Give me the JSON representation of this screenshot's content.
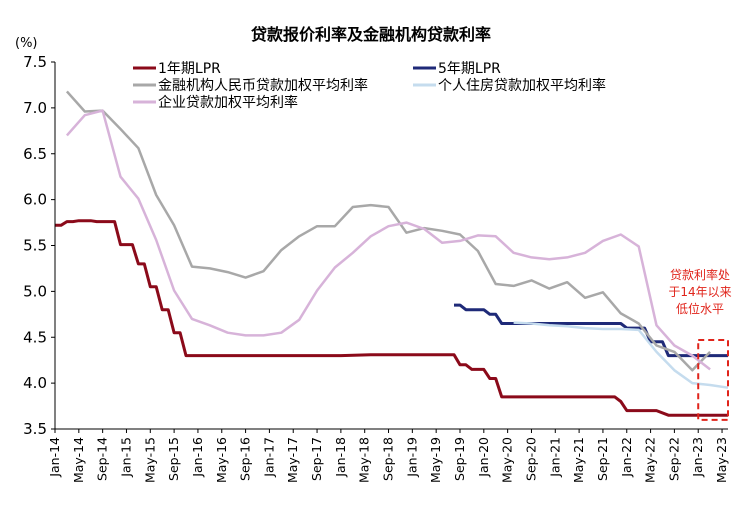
{
  "chart_data": {
    "type": "line",
    "title": "贷款报价利率及金融机构贷款利率",
    "unit_label": "(%)",
    "ylim": [
      3.5,
      7.5
    ],
    "yticks": [
      "3.5",
      "4.0",
      "4.5",
      "5.0",
      "5.5",
      "6.0",
      "6.5",
      "7.0",
      "7.5"
    ],
    "xlim": [
      "2014-01",
      "2023-06"
    ],
    "xticks": [
      "Jan-14",
      "May-14",
      "Sep-14",
      "Jan-15",
      "May-15",
      "Sep-15",
      "Jan-16",
      "May-16",
      "Sep-16",
      "Jan-17",
      "May-17",
      "Sep-17",
      "Jan-18",
      "May-18",
      "Sep-18",
      "Jan-19",
      "May-19",
      "Sep-19",
      "Jan-20",
      "May-20",
      "Sep-20",
      "Jan-21",
      "May-21",
      "Sep-21",
      "Jan-22",
      "May-22",
      "Sep-22",
      "Jan-23",
      "May-23"
    ],
    "grid": false,
    "legend_position": "top",
    "annotation": {
      "lines": [
        "贷款利率处",
        "于14年以来",
        "低位水平"
      ],
      "color": "#e0241b",
      "box_x_range": [
        "2023-01",
        "2023-06"
      ],
      "box_y_range": [
        3.6,
        4.47
      ]
    },
    "series": [
      {
        "name": "1年期LPR",
        "color": "#8b0a1a",
        "width": 3,
        "points": [
          [
            "2014-01",
            5.72
          ],
          [
            "2014-02",
            5.72
          ],
          [
            "2014-03",
            5.76
          ],
          [
            "2014-04",
            5.76
          ],
          [
            "2014-05",
            5.77
          ],
          [
            "2014-06",
            5.77
          ],
          [
            "2014-07",
            5.77
          ],
          [
            "2014-08",
            5.76
          ],
          [
            "2014-09",
            5.76
          ],
          [
            "2014-10",
            5.76
          ],
          [
            "2014-11",
            5.76
          ],
          [
            "2014-12",
            5.51
          ],
          [
            "2015-01",
            5.51
          ],
          [
            "2015-02",
            5.51
          ],
          [
            "2015-03",
            5.3
          ],
          [
            "2015-04",
            5.3
          ],
          [
            "2015-05",
            5.05
          ],
          [
            "2015-06",
            5.05
          ],
          [
            "2015-07",
            4.8
          ],
          [
            "2015-08",
            4.8
          ],
          [
            "2015-09",
            4.55
          ],
          [
            "2015-10",
            4.55
          ],
          [
            "2015-11",
            4.3
          ],
          [
            "2016-01",
            4.3
          ],
          [
            "2017-01",
            4.3
          ],
          [
            "2018-01",
            4.3
          ],
          [
            "2018-06",
            4.31
          ],
          [
            "2019-01",
            4.31
          ],
          [
            "2019-08",
            4.31
          ],
          [
            "2019-09",
            4.2
          ],
          [
            "2019-10",
            4.2
          ],
          [
            "2019-11",
            4.15
          ],
          [
            "2020-01",
            4.15
          ],
          [
            "2020-02",
            4.05
          ],
          [
            "2020-03",
            4.05
          ],
          [
            "2020-04",
            3.85
          ],
          [
            "2020-06",
            3.85
          ],
          [
            "2021-01",
            3.85
          ],
          [
            "2021-06",
            3.85
          ],
          [
            "2021-11",
            3.85
          ],
          [
            "2021-12",
            3.8
          ],
          [
            "2022-01",
            3.7
          ],
          [
            "2022-06",
            3.7
          ],
          [
            "2022-08",
            3.65
          ],
          [
            "2023-01",
            3.65
          ],
          [
            "2023-06",
            3.65
          ]
        ]
      },
      {
        "name": "5年期LPR",
        "color": "#1f2a78",
        "width": 3,
        "points": [
          [
            "2019-08",
            4.85
          ],
          [
            "2019-09",
            4.85
          ],
          [
            "2019-10",
            4.8
          ],
          [
            "2019-11",
            4.8
          ],
          [
            "2019-12",
            4.8
          ],
          [
            "2020-01",
            4.8
          ],
          [
            "2020-02",
            4.75
          ],
          [
            "2020-03",
            4.75
          ],
          [
            "2020-04",
            4.65
          ],
          [
            "2020-06",
            4.65
          ],
          [
            "2021-01",
            4.65
          ],
          [
            "2021-06",
            4.65
          ],
          [
            "2021-12",
            4.65
          ],
          [
            "2022-01",
            4.6
          ],
          [
            "2022-04",
            4.6
          ],
          [
            "2022-05",
            4.45
          ],
          [
            "2022-07",
            4.45
          ],
          [
            "2022-08",
            4.3
          ],
          [
            "2023-01",
            4.3
          ],
          [
            "2023-06",
            4.3
          ]
        ]
      },
      {
        "name": "金融机构人民币贷款加权平均利率",
        "color": "#a8a8a8",
        "width": 2.5,
        "points": [
          [
            "2014-03",
            7.18
          ],
          [
            "2014-06",
            6.96
          ],
          [
            "2014-09",
            6.97
          ],
          [
            "2014-12",
            6.77
          ],
          [
            "2015-03",
            6.56
          ],
          [
            "2015-06",
            6.05
          ],
          [
            "2015-09",
            5.72
          ],
          [
            "2015-12",
            5.27
          ],
          [
            "2016-03",
            5.25
          ],
          [
            "2016-06",
            5.21
          ],
          [
            "2016-09",
            5.15
          ],
          [
            "2016-12",
            5.22
          ],
          [
            "2017-03",
            5.45
          ],
          [
            "2017-06",
            5.6
          ],
          [
            "2017-09",
            5.71
          ],
          [
            "2017-12",
            5.71
          ],
          [
            "2018-03",
            5.92
          ],
          [
            "2018-06",
            5.94
          ],
          [
            "2018-09",
            5.92
          ],
          [
            "2018-12",
            5.64
          ],
          [
            "2019-03",
            5.69
          ],
          [
            "2019-06",
            5.66
          ],
          [
            "2019-09",
            5.62
          ],
          [
            "2019-12",
            5.44
          ],
          [
            "2020-03",
            5.08
          ],
          [
            "2020-06",
            5.06
          ],
          [
            "2020-09",
            5.12
          ],
          [
            "2020-12",
            5.03
          ],
          [
            "2021-03",
            5.1
          ],
          [
            "2021-06",
            4.93
          ],
          [
            "2021-09",
            4.99
          ],
          [
            "2021-12",
            4.76
          ],
          [
            "2022-03",
            4.65
          ],
          [
            "2022-06",
            4.41
          ],
          [
            "2022-09",
            4.34
          ],
          [
            "2022-12",
            4.14
          ],
          [
            "2023-03",
            4.34
          ]
        ]
      },
      {
        "name": "个人住房贷款加权平均利率",
        "color": "#c5dcee",
        "width": 2.5,
        "points": [
          [
            "2020-06",
            4.66
          ],
          [
            "2020-09",
            4.65
          ],
          [
            "2020-12",
            4.63
          ],
          [
            "2021-03",
            4.62
          ],
          [
            "2021-06",
            4.6
          ],
          [
            "2021-09",
            4.59
          ],
          [
            "2021-12",
            4.59
          ],
          [
            "2022-03",
            4.58
          ],
          [
            "2022-06",
            4.34
          ],
          [
            "2022-09",
            4.14
          ],
          [
            "2022-12",
            4.0
          ],
          [
            "2023-03",
            3.98
          ],
          [
            "2023-06",
            3.95
          ]
        ]
      },
      {
        "name": "企业贷款加权平均利率",
        "color": "#d7b3d9",
        "width": 2.5,
        "points": [
          [
            "2014-03",
            6.7
          ],
          [
            "2014-06",
            6.92
          ],
          [
            "2014-09",
            6.97
          ],
          [
            "2014-12",
            6.25
          ],
          [
            "2015-03",
            6.01
          ],
          [
            "2015-06",
            5.56
          ],
          [
            "2015-09",
            5.01
          ],
          [
            "2015-12",
            4.7
          ],
          [
            "2016-03",
            4.63
          ],
          [
            "2016-06",
            4.55
          ],
          [
            "2016-09",
            4.52
          ],
          [
            "2016-12",
            4.52
          ],
          [
            "2017-03",
            4.55
          ],
          [
            "2017-06",
            4.69
          ],
          [
            "2017-09",
            5.01
          ],
          [
            "2017-12",
            5.26
          ],
          [
            "2018-03",
            5.42
          ],
          [
            "2018-06",
            5.6
          ],
          [
            "2018-09",
            5.71
          ],
          [
            "2018-12",
            5.75
          ],
          [
            "2019-03",
            5.68
          ],
          [
            "2019-06",
            5.53
          ],
          [
            "2019-09",
            5.55
          ],
          [
            "2019-12",
            5.61
          ],
          [
            "2020-03",
            5.6
          ],
          [
            "2020-06",
            5.42
          ],
          [
            "2020-09",
            5.37
          ],
          [
            "2020-12",
            5.35
          ],
          [
            "2021-03",
            5.37
          ],
          [
            "2021-06",
            5.42
          ],
          [
            "2021-09",
            5.55
          ],
          [
            "2021-12",
            5.62
          ],
          [
            "2022-03",
            5.49
          ],
          [
            "2022-06",
            4.63
          ],
          [
            "2022-09",
            4.41
          ],
          [
            "2022-12",
            4.3
          ],
          [
            "2023-03",
            4.15
          ]
        ]
      }
    ]
  }
}
